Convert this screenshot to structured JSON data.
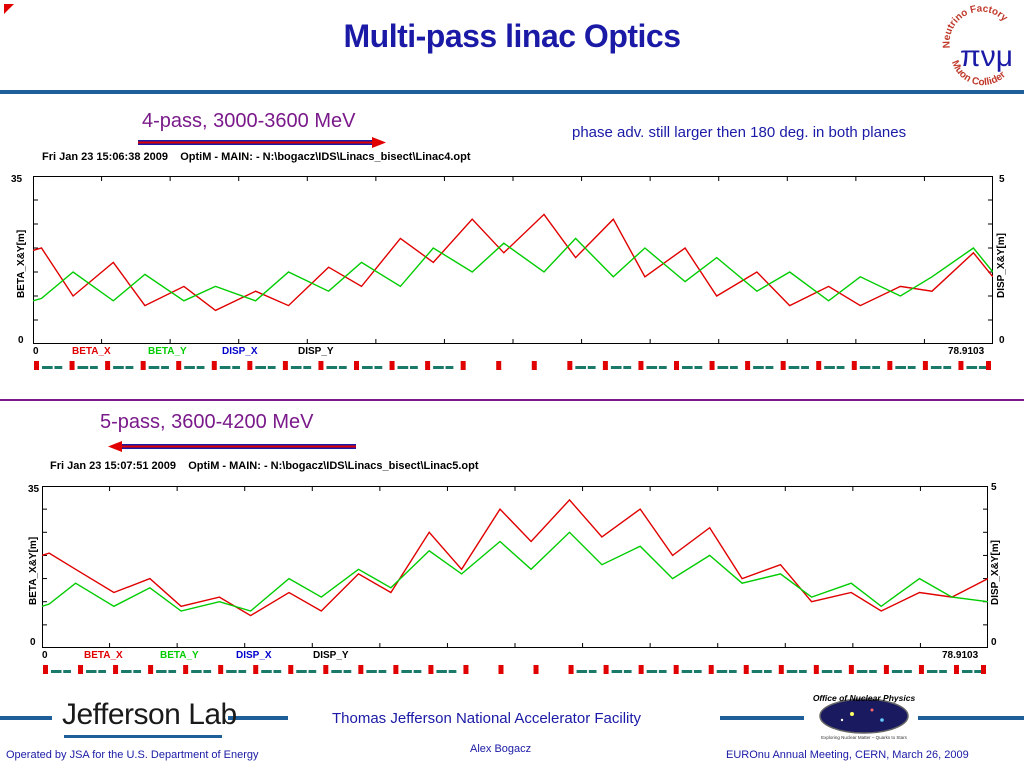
{
  "slide": {
    "title": "Multi-pass linac Optics",
    "logo_nf_muc": {
      "top_text": "Neutrino Factory",
      "bottom_text": "Muon Collider",
      "symbols": "πνμ"
    }
  },
  "plot1": {
    "pass_label": "4-pass, 3000-3600 MeV",
    "arrow_direction": "right",
    "note": "phase adv. still  larger then 180 deg.  in both planes",
    "header": "Fri Jan 23 15:06:38 2009    OptiM - MAIN: - N:\\bogacz\\IDS\\Linacs_bisect\\Linac4.opt",
    "y_left_label": "BETA_X&Y[m]",
    "y_right_label": "DISP_X&Y[m]",
    "y_left_top": "35",
    "y_left_bottom": "0",
    "y_right_top": "5",
    "y_right_bottom": "0",
    "x_start": "0",
    "x_end": "78.9103",
    "legend": {
      "beta_x": "BETA_X",
      "beta_y": "BETA_Y",
      "disp_x": "DISP_X",
      "disp_y": "DISP_Y"
    }
  },
  "plot2": {
    "pass_label": "5-pass, 3600-4200 MeV",
    "arrow_direction": "left",
    "header": "Fri Jan 23 15:07:51 2009    OptiM - MAIN: - N:\\bogacz\\IDS\\Linacs_bisect\\Linac5.opt",
    "y_left_label": "BETA_X&Y[m]",
    "y_right_label": "DISP_X&Y[m]",
    "y_left_top": "35",
    "y_left_bottom": "0",
    "y_right_top": "5",
    "y_right_bottom": "0",
    "x_start": "0",
    "x_end": "78.9103",
    "legend": {
      "beta_x": "BETA_X",
      "beta_y": "BETA_Y",
      "disp_x": "DISP_X",
      "disp_y": "DISP_Y"
    }
  },
  "chart_data": [
    {
      "type": "line",
      "xlim": [
        0,
        78.9103
      ],
      "ylim": [
        0,
        35
      ],
      "grid": true,
      "series": [
        {
          "name": "BETA_X",
          "color": "#e00000",
          "x": [
            0,
            0.7,
            3.3,
            6.6,
            9.2,
            12.4,
            15.0,
            18.3,
            21.0,
            24.3,
            27.0,
            30.2,
            32.9,
            36.1,
            38.7,
            42.0,
            44.6,
            47.7,
            50.3,
            53.6,
            56.2,
            59.5,
            62.2,
            65.4,
            68.0,
            71.3,
            73.9,
            77.3,
            78.9
          ],
          "y": [
            19.5,
            20,
            10,
            17,
            8,
            12,
            7,
            11,
            8,
            16,
            12,
            22,
            17,
            26,
            19,
            27,
            18,
            26,
            14,
            20,
            10,
            15,
            8,
            12,
            8,
            12,
            11,
            19,
            14
          ]
        },
        {
          "name": "BETA_Y",
          "color": "#00cc00",
          "x": [
            0,
            0.7,
            3.3,
            6.6,
            9.2,
            12.4,
            15.0,
            18.3,
            21.0,
            24.3,
            27.0,
            30.2,
            32.9,
            36.1,
            38.7,
            42.0,
            44.6,
            47.7,
            50.3,
            53.6,
            56.2,
            59.5,
            62.2,
            65.4,
            68.0,
            71.3,
            73.9,
            77.3,
            78.9
          ],
          "y": [
            9,
            9.5,
            15,
            9,
            14.5,
            9,
            12,
            9,
            15,
            11,
            17,
            12,
            20,
            15,
            21,
            15,
            22,
            14,
            20,
            13,
            18,
            11,
            15,
            9,
            14,
            10,
            14,
            20,
            15
          ]
        },
        {
          "name": "DISP_X",
          "color": "#0000cc",
          "x": [],
          "y": []
        },
        {
          "name": "DISP_Y",
          "color": "#000000",
          "x": [],
          "y": []
        }
      ]
    },
    {
      "type": "line",
      "xlim": [
        0,
        78.9103
      ],
      "ylim": [
        0,
        35
      ],
      "grid": true,
      "series": [
        {
          "name": "BETA_X",
          "color": "#e00000",
          "x": [
            0,
            0.6,
            2.8,
            6.0,
            9.0,
            11.6,
            14.8,
            17.4,
            20.6,
            23.3,
            26.4,
            29.1,
            32.3,
            35.0,
            38.2,
            40.8,
            44.0,
            46.7,
            49.9,
            52.6,
            55.7,
            58.4,
            61.6,
            64.2,
            67.5,
            70.0,
            73.2,
            75.9,
            78.9
          ],
          "y": [
            20,
            20.5,
            17,
            12,
            15,
            9,
            11,
            7,
            12,
            8,
            16,
            12,
            25,
            17,
            30,
            23,
            32,
            24,
            30,
            20,
            26,
            15,
            18,
            10,
            12,
            8,
            12,
            11,
            15
          ]
        },
        {
          "name": "BETA_Y",
          "color": "#00cc00",
          "x": [
            0,
            0.6,
            2.8,
            6.0,
            9.0,
            11.6,
            14.8,
            17.4,
            20.6,
            23.3,
            26.4,
            29.1,
            32.3,
            35.0,
            38.2,
            40.8,
            44.0,
            46.7,
            49.9,
            52.6,
            55.7,
            58.4,
            61.6,
            64.2,
            67.5,
            70.0,
            73.2,
            75.9,
            78.9
          ],
          "y": [
            9,
            9.5,
            14,
            9,
            13,
            8,
            10,
            8,
            15,
            11,
            17,
            13,
            21,
            16,
            23,
            17,
            25,
            18,
            22,
            15,
            20,
            14,
            16,
            11,
            14,
            9,
            15,
            11,
            10
          ]
        },
        {
          "name": "DISP_X",
          "color": "#0000cc",
          "x": [],
          "y": []
        },
        {
          "name": "DISP_Y",
          "color": "#000000",
          "x": [],
          "y": []
        }
      ]
    }
  ],
  "footer": {
    "jlab_logo": "Jefferson Lab",
    "facility": "Thomas Jefferson National Accelerator Facility",
    "operated_by": "Operated by JSA for the U.S. Department of Energy",
    "author": "Alex Bogacz",
    "meeting": "EUROnu Annual Meeting, CERN, March 26, 2009",
    "doe_logo_top": "Office of Nuclear Physics",
    "doe_logo_bottom": "Exploring Nuclear Matter – Quarks to Stars"
  }
}
